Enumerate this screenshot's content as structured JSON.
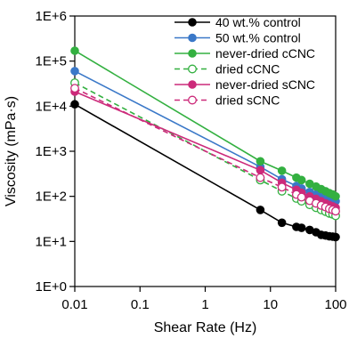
{
  "chart_data": {
    "type": "line",
    "xlabel": "Shear Rate (Hz)",
    "ylabel": "Viscosity (mPa·s)",
    "xscale": "log",
    "yscale": "log",
    "xlim": [
      0.01,
      100
    ],
    "ylim": [
      1,
      1000000
    ],
    "x_ticks": [
      0.01,
      0.1,
      1,
      10,
      100
    ],
    "x_tick_labels": [
      "0.01",
      "0.1",
      "1",
      "10",
      "100"
    ],
    "y_ticks": [
      1,
      10,
      100,
      1000,
      10000,
      100000,
      1000000
    ],
    "y_tick_labels": [
      "1E+0",
      "1E+1",
      "1E+2",
      "1E+3",
      "1E+4",
      "1E+5",
      "1E+6"
    ],
    "grid": false,
    "legend_position": "top-right",
    "x": [
      0.01,
      7,
      15,
      25,
      30,
      40,
      50,
      60,
      70,
      80,
      90,
      100
    ],
    "series": [
      {
        "name": "40 wt.% control",
        "color": "#000000",
        "line_style": "solid",
        "marker": "filled-circle",
        "values": [
          11000,
          50,
          26,
          21,
          20,
          18,
          16,
          14,
          13.5,
          13,
          12.8,
          12.5
        ]
      },
      {
        "name": "50 wt.% control",
        "color": "#3a78c8",
        "line_style": "solid",
        "marker": "filled-circle",
        "values": [
          60000,
          450,
          240,
          170,
          150,
          125,
          110,
          100,
          92,
          86,
          82,
          78
        ]
      },
      {
        "name": "never-dried cCNC",
        "color": "#33b040",
        "line_style": "solid",
        "marker": "filled-circle",
        "values": [
          170000,
          600,
          370,
          260,
          230,
          190,
          165,
          145,
          130,
          118,
          110,
          100
        ]
      },
      {
        "name": "dried cCNC",
        "color": "#33b040",
        "line_style": "dashed",
        "marker": "open-circle",
        "values": [
          33000,
          230,
          130,
          90,
          78,
          65,
          56,
          50,
          46,
          42,
          40,
          37
        ]
      },
      {
        "name": "never-dried sCNC",
        "color": "#cc2a7a",
        "line_style": "solid",
        "marker": "filled-circle",
        "values": [
          21000,
          380,
          200,
          140,
          120,
          100,
          88,
          78,
          70,
          64,
          60,
          56
        ]
      },
      {
        "name": "dried sCNC",
        "color": "#cc2a7a",
        "line_style": "dashed",
        "marker": "open-circle",
        "values": [
          25000,
          260,
          160,
          110,
          96,
          80,
          70,
          63,
          58,
          53,
          50,
          47
        ]
      }
    ]
  }
}
